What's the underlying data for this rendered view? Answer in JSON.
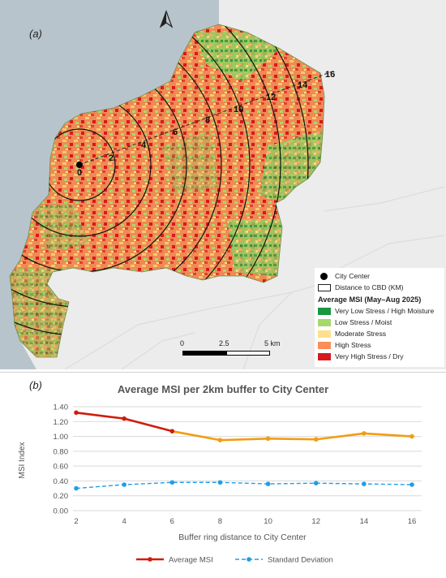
{
  "map": {
    "panel_label": "(a)",
    "north_symbol": "north-arrow",
    "city_center_label": "0",
    "ring_labels": [
      "2",
      "4",
      "6",
      "8",
      "10",
      "12",
      "14",
      "16"
    ],
    "legend": {
      "city_center": "City Center",
      "distance": "Distance to CBD (KM)",
      "title": "Average MSI (May–Aug 2025)",
      "classes": [
        {
          "label": "Very Low Stress / High Moisture",
          "color": "#1a9641"
        },
        {
          "label": "Low Stress / Moist",
          "color": "#a6d96a"
        },
        {
          "label": "Moderate Stress",
          "color": "#ffe08a"
        },
        {
          "label": "High Stress",
          "color": "#fc8d59"
        },
        {
          "label": "Very High Stress / Dry",
          "color": "#d7191c"
        }
      ]
    },
    "scalebar": {
      "labels": [
        "0",
        "2.5",
        "5 km"
      ]
    }
  },
  "chart": {
    "panel_label": "(b)",
    "title": "Average MSI per 2km buffer to City Center",
    "ylabel": "MSI Index",
    "xlabel": "Buffer ring distance to City Center",
    "legend": [
      "Average MSI",
      "Standard Deviation"
    ]
  },
  "chart_data": {
    "type": "line",
    "title": "Average MSI per 2km buffer to City Center",
    "xlabel": "Buffer ring distance to City Center",
    "ylabel": "MSI Index",
    "x": [
      2,
      4,
      6,
      8,
      10,
      12,
      14,
      16
    ],
    "ylim": [
      0,
      1.4
    ],
    "yticks": [
      "0.00",
      "0.20",
      "0.40",
      "0.60",
      "0.80",
      "1.00",
      "1.20",
      "1.40"
    ],
    "grid": true,
    "legend_position": "bottom",
    "series": [
      {
        "name": "Average MSI",
        "values": [
          1.32,
          1.24,
          1.07,
          0.95,
          0.97,
          0.96,
          1.04,
          1.0
        ],
        "color": "#d01c0b",
        "color2": "#f39c12",
        "style": "solid"
      },
      {
        "name": "Standard Deviation",
        "values": [
          0.3,
          0.35,
          0.38,
          0.38,
          0.36,
          0.37,
          0.36,
          0.35
        ],
        "color": "#1f9ee6",
        "style": "dashed"
      }
    ]
  }
}
